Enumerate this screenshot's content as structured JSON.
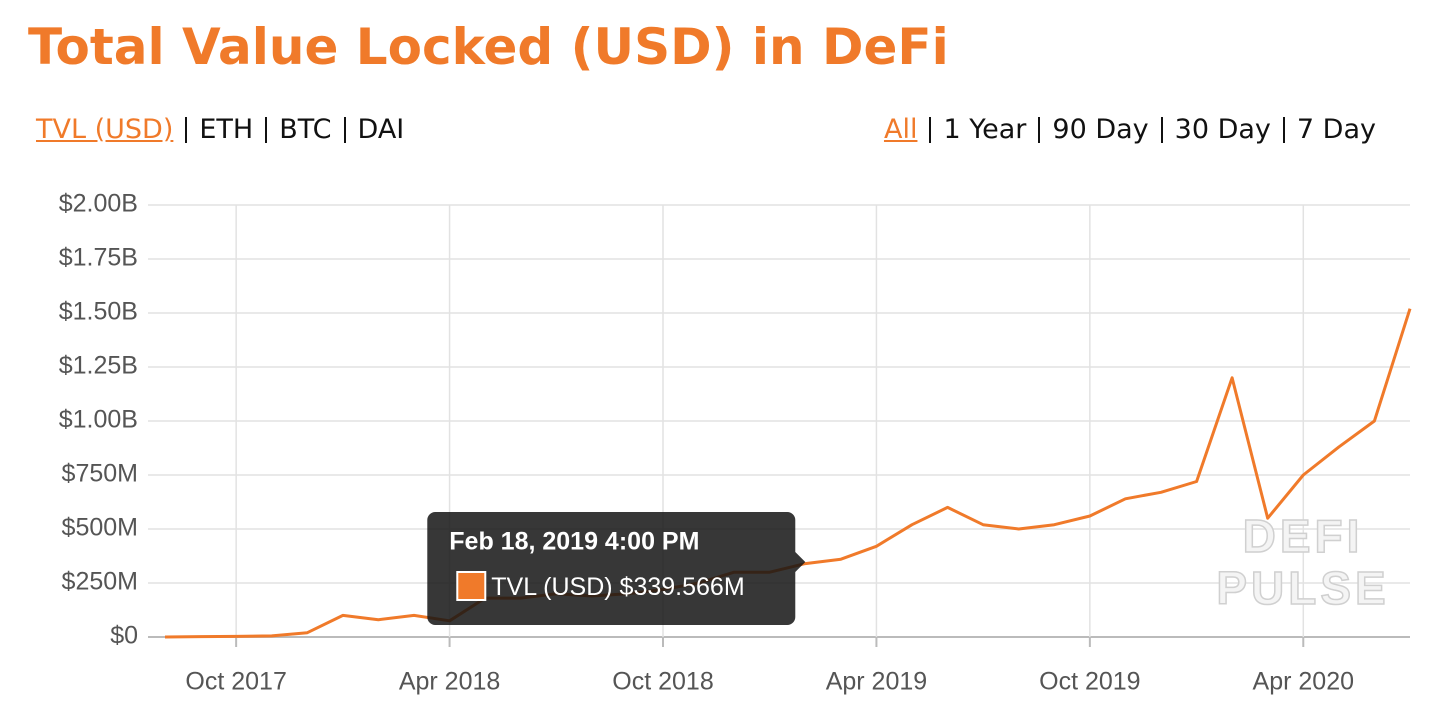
{
  "header": {
    "title": "Total Value Locked (USD) in DeFi"
  },
  "metric_tabs": {
    "items": [
      "TVL (USD)",
      "ETH",
      "BTC",
      "DAI"
    ],
    "selected": 0
  },
  "range_tabs": {
    "items": [
      "All",
      "1 Year",
      "90 Day",
      "30 Day",
      "7 Day"
    ],
    "selected": 0
  },
  "chart_data": {
    "type": "line",
    "x": [
      "2017-08",
      "2017-09",
      "2017-10",
      "2017-11",
      "2017-12",
      "2018-01",
      "2018-02",
      "2018-03",
      "2018-04",
      "2018-05",
      "2018-06",
      "2018-07",
      "2018-08",
      "2018-09",
      "2018-10",
      "2018-11",
      "2018-12",
      "2019-01",
      "2019-02",
      "2019-03",
      "2019-04",
      "2019-05",
      "2019-06",
      "2019-07",
      "2019-08",
      "2019-09",
      "2019-10",
      "2019-11",
      "2019-12",
      "2020-01",
      "2020-02",
      "2020-03",
      "2020-04",
      "2020-05",
      "2020-06",
      "2020-07"
    ],
    "series": [
      {
        "name": "TVL (USD)",
        "color": "#f07a2a",
        "values": [
          0,
          2000000,
          3000000,
          5000000,
          20000000,
          100000000,
          80000000,
          100000000,
          75000000,
          180000000,
          180000000,
          200000000,
          190000000,
          200000000,
          220000000,
          250000000,
          300000000,
          300000000,
          340000000,
          360000000,
          420000000,
          520000000,
          600000000,
          520000000,
          500000000,
          520000000,
          560000000,
          640000000,
          670000000,
          720000000,
          1200000000,
          550000000,
          750000000,
          880000000,
          1000000000,
          1520000000
        ]
      }
    ],
    "xlim": [
      "2017-08",
      "2020-07"
    ],
    "xticks": [
      {
        "value": "2017-10",
        "label": "Oct 2017"
      },
      {
        "value": "2018-04",
        "label": "Apr 2018"
      },
      {
        "value": "2018-10",
        "label": "Oct 2018"
      },
      {
        "value": "2019-04",
        "label": "Apr 2019"
      },
      {
        "value": "2019-10",
        "label": "Oct 2019"
      },
      {
        "value": "2020-04",
        "label": "Apr 2020"
      }
    ],
    "ylim": [
      0,
      2000000000
    ],
    "yticks": [
      {
        "value": 0,
        "label": "$0"
      },
      {
        "value": 250000000,
        "label": "$250M"
      },
      {
        "value": 500000000,
        "label": "$500M"
      },
      {
        "value": 750000000,
        "label": "$750M"
      },
      {
        "value": 1000000000,
        "label": "$1.00B"
      },
      {
        "value": 1250000000,
        "label": "$1.25B"
      },
      {
        "value": 1500000000,
        "label": "$1.50B"
      },
      {
        "value": 1750000000,
        "label": "$1.75B"
      },
      {
        "value": 2000000000,
        "label": "$2.00B"
      }
    ],
    "grid": true,
    "tooltip": {
      "x": "2019-02",
      "title": "Feb 18, 2019 4:00 PM",
      "value_label": "$339.566M"
    },
    "watermark": [
      "DEFI",
      "PULSE"
    ]
  }
}
